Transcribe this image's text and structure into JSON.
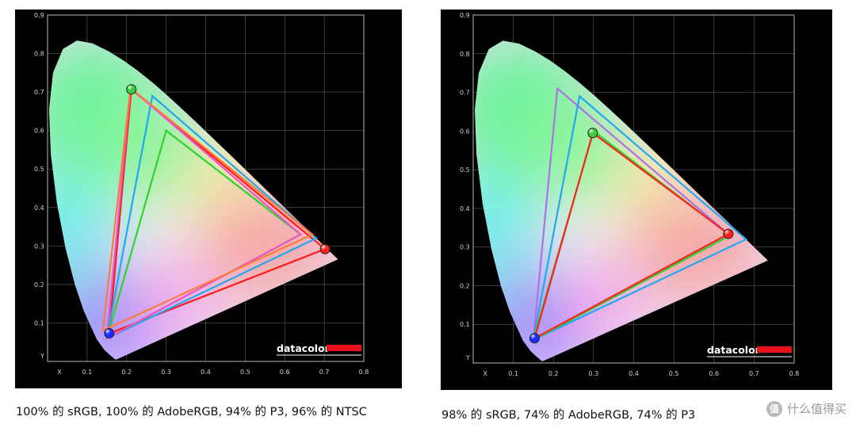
{
  "chart_data": [
    {
      "type": "scatter",
      "title": "",
      "brand": "datacolor",
      "caption": "100% 的 sRGB, 100% 的 AdobeRGB, 94% 的 P3, 96% 的 NTSC",
      "xlabel": "X",
      "ylabel": "Y",
      "xlim": [
        0,
        0.8
      ],
      "ylim": [
        0,
        0.9
      ],
      "xticks": [
        "0.1",
        "0.2",
        "0.3",
        "0.4",
        "0.5",
        "0.6",
        "0.7",
        "0.8"
      ],
      "yticks": [
        "0.1",
        "0.2",
        "0.3",
        "0.4",
        "0.5",
        "0.6",
        "0.7",
        "0.8",
        "0.9"
      ],
      "grid": true,
      "gamuts": [
        {
          "color": "#ff1a1a",
          "points": [
            [
              0.702,
              0.292
            ],
            [
              0.212,
              0.707
            ],
            [
              0.156,
              0.073
            ]
          ]
        },
        {
          "color": "#2fd12f",
          "points": [
            [
              0.64,
              0.33
            ],
            [
              0.3,
              0.6
            ],
            [
              0.15,
              0.06
            ]
          ]
        },
        {
          "color": "#22a8f0",
          "points": [
            [
              0.68,
              0.32
            ],
            [
              0.265,
              0.69
            ],
            [
              0.15,
              0.06
            ]
          ]
        },
        {
          "color": "#ee55cc",
          "points": [
            [
              0.64,
              0.33
            ],
            [
              0.21,
              0.71
            ],
            [
              0.15,
              0.06
            ]
          ]
        },
        {
          "color": "#ff7a3a",
          "points": [
            [
              0.67,
              0.33
            ],
            [
              0.21,
              0.71
            ],
            [
              0.14,
              0.08
            ]
          ]
        }
      ],
      "primaries": [
        {
          "color": "#ff2020",
          "x": 0.702,
          "y": 0.292
        },
        {
          "color": "#3ccc3c",
          "x": 0.212,
          "y": 0.707
        },
        {
          "color": "#1a2cff",
          "x": 0.156,
          "y": 0.073
        }
      ]
    },
    {
      "type": "scatter",
      "title": "",
      "brand": "datacolor",
      "caption": "98% 的 sRGB, 74% 的 AdobeRGB, 74% 的 P3",
      "xlabel": "X",
      "ylabel": "Y",
      "xlim": [
        0,
        0.8
      ],
      "ylim": [
        0,
        0.9
      ],
      "xticks": [
        "0.1",
        "0.2",
        "0.3",
        "0.4",
        "0.5",
        "0.6",
        "0.7",
        "0.8"
      ],
      "yticks": [
        "0.1",
        "0.2",
        "0.3",
        "0.4",
        "0.5",
        "0.6",
        "0.7",
        "0.8",
        "0.9"
      ],
      "grid": true,
      "gamuts": [
        {
          "color": "#b070e8",
          "points": [
            [
              0.64,
              0.33
            ],
            [
              0.21,
              0.71
            ],
            [
              0.15,
              0.06
            ]
          ]
        },
        {
          "color": "#22a8f0",
          "points": [
            [
              0.68,
              0.32
            ],
            [
              0.265,
              0.69
            ],
            [
              0.15,
              0.06
            ]
          ]
        },
        {
          "color": "#2fd12f",
          "points": [
            [
              0.64,
              0.33
            ],
            [
              0.3,
              0.6
            ],
            [
              0.15,
              0.06
            ]
          ]
        },
        {
          "color": "#ff2020",
          "points": [
            [
              0.636,
              0.334
            ],
            [
              0.298,
              0.595
            ],
            [
              0.153,
              0.064
            ]
          ]
        }
      ],
      "primaries": [
        {
          "color": "#ff2020",
          "x": 0.636,
          "y": 0.334
        },
        {
          "color": "#3ccc3c",
          "x": 0.298,
          "y": 0.595
        },
        {
          "color": "#1a2cff",
          "x": 0.153,
          "y": 0.064
        }
      ]
    }
  ],
  "watermark": {
    "badge": "值",
    "text": "什么值得买"
  }
}
